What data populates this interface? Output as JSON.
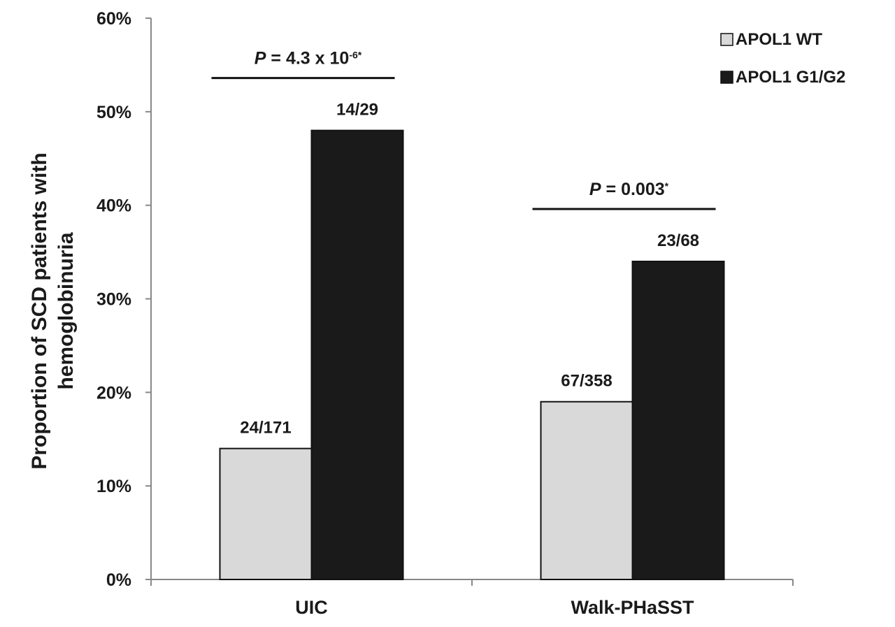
{
  "chart_data": {
    "type": "bar",
    "categories": [
      "UIC",
      "Walk-PHaSST"
    ],
    "series": [
      {
        "name": "APOL1 WT",
        "color": "#d9d9d9",
        "values": [
          14,
          19
        ],
        "labels": [
          "24/171",
          "67/358"
        ]
      },
      {
        "name": "APOL1 G1/G2",
        "color": "#1a1a1a",
        "values": [
          48,
          34
        ],
        "labels": [
          "14/29",
          "23/68"
        ]
      }
    ],
    "ylabel_line1": "Proportion of SCD patients with",
    "ylabel_line2": "hemoglobinuria",
    "ylim": [
      0,
      60
    ],
    "yticks": [
      "0%",
      "10%",
      "20%",
      "30%",
      "40%",
      "50%",
      "60%"
    ],
    "grid": false,
    "legend": "top-right",
    "annotations": [
      {
        "category": "UIC",
        "p_italic": "P",
        "text": " = 4.3 x 10",
        "sup": "-6*"
      },
      {
        "category": "Walk-PHaSST",
        "p_italic": "P",
        "text": " = 0.003",
        "sup": "*"
      }
    ]
  }
}
